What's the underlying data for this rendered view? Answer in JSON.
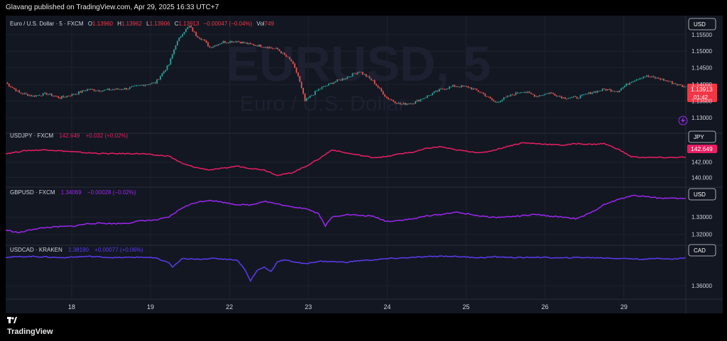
{
  "header": {
    "published_text": "Glavang published on TradingView.com, Apr 29, 2025 16:33 UTC+7"
  },
  "footer": {
    "brand": "TradingView"
  },
  "chart_data": [
    {
      "type": "candlestick",
      "title": "Euro / U.S. Dollar · 5 · FXCM",
      "watermark": "EURUSD, 5",
      "watermark_sub": "Euro / U.S. Dollar",
      "ohlc": {
        "O": "1.13960",
        "H": "1.13962",
        "L": "1.13906",
        "C": "1.13913",
        "change": "−0.00047 (−0.04%)",
        "vol_label": "Vol",
        "vol": "749"
      },
      "currency": "USD",
      "last_price": "1.13913",
      "countdown": "01:42",
      "y_ticks": [
        "1.15500",
        "1.15000",
        "1.14500",
        "1.14000",
        "1.13500",
        "1.13000"
      ],
      "ylim": [
        1.127,
        1.159
      ],
      "x": [
        0,
        2,
        4,
        6,
        8,
        10,
        12,
        14,
        16,
        18,
        20,
        22,
        24,
        25,
        26,
        27,
        28,
        29,
        30,
        32,
        34,
        36,
        38,
        40,
        42,
        43,
        44,
        46,
        48,
        50,
        52,
        54,
        56,
        58,
        60,
        62,
        64,
        66,
        68,
        70,
        72,
        74,
        76,
        78,
        80,
        82,
        84,
        86,
        88,
        90,
        92,
        94,
        96,
        98,
        100
      ],
      "values": [
        1.1405,
        1.1375,
        1.1365,
        1.1372,
        1.136,
        1.137,
        1.1385,
        1.1382,
        1.1385,
        1.1388,
        1.1398,
        1.1405,
        1.146,
        1.152,
        1.1555,
        1.1575,
        1.1548,
        1.1535,
        1.1512,
        1.1528,
        1.153,
        1.152,
        1.1515,
        1.1505,
        1.147,
        1.1425,
        1.135,
        1.1385,
        1.1405,
        1.142,
        1.144,
        1.141,
        1.136,
        1.134,
        1.1345,
        1.1365,
        1.1385,
        1.1395,
        1.1392,
        1.1375,
        1.1345,
        1.1365,
        1.138,
        1.1365,
        1.1375,
        1.136,
        1.136,
        1.1375,
        1.1385,
        1.138,
        1.141,
        1.1425,
        1.1418,
        1.1405,
        1.1391
      ]
    },
    {
      "type": "line",
      "title": "USDJPY · FXCM",
      "last_value": "142.649",
      "change": "+0.032 (+0.02%)",
      "currency": "JPY",
      "y_ticks": [
        "142.000",
        "140.000"
      ],
      "ylim": [
        139.5,
        145.0
      ],
      "color": "#e91e63",
      "x": [
        0,
        3,
        6,
        9,
        12,
        15,
        18,
        20,
        22,
        24,
        26,
        28,
        30,
        32,
        34,
        36,
        38,
        40,
        42,
        44,
        45,
        46,
        48,
        50,
        52,
        54,
        56,
        58,
        60,
        62,
        64,
        66,
        68,
        70,
        72,
        74,
        76,
        78,
        80,
        82,
        84,
        86,
        88,
        90,
        92,
        94,
        96,
        98,
        100
      ],
      "values": [
        143.1,
        143.5,
        143.6,
        143.4,
        143.2,
        143.1,
        143.1,
        143.1,
        142.9,
        142.8,
        141.8,
        141.3,
        141.0,
        141.2,
        141.5,
        141.2,
        141.0,
        140.3,
        140.6,
        141.4,
        141.9,
        142.4,
        143.6,
        143.2,
        142.9,
        142.6,
        142.7,
        143.1,
        143.3,
        143.8,
        144.0,
        143.6,
        143.4,
        143.2,
        143.6,
        144.1,
        144.5,
        144.4,
        144.3,
        144.2,
        144.4,
        144.3,
        144.4,
        143.7,
        142.7,
        142.6,
        142.6,
        142.6,
        142.65
      ]
    },
    {
      "type": "line",
      "title": "GBPUSD · FXCM",
      "last_value": "1.34069",
      "change": "−0.00028 (−0.02%)",
      "currency": "USD",
      "y_ticks": [
        "1.33000",
        "1.32000"
      ],
      "ylim": [
        1.317,
        1.344
      ],
      "color": "#9c27f0",
      "x": [
        0,
        2,
        4,
        6,
        8,
        10,
        12,
        14,
        16,
        18,
        20,
        22,
        24,
        26,
        28,
        30,
        32,
        34,
        36,
        38,
        40,
        42,
        44,
        46,
        47,
        48,
        50,
        52,
        54,
        56,
        58,
        60,
        62,
        64,
        66,
        68,
        70,
        72,
        74,
        76,
        78,
        80,
        82,
        84,
        86,
        88,
        90,
        92,
        94,
        96,
        98,
        100
      ],
      "values": [
        1.3225,
        1.321,
        1.323,
        1.324,
        1.3245,
        1.3248,
        1.3262,
        1.3265,
        1.3262,
        1.3265,
        1.328,
        1.3282,
        1.33,
        1.3355,
        1.3385,
        1.3398,
        1.3385,
        1.3372,
        1.337,
        1.3392,
        1.3375,
        1.3358,
        1.3352,
        1.332,
        1.325,
        1.33,
        1.3315,
        1.331,
        1.3305,
        1.3275,
        1.3282,
        1.329,
        1.3308,
        1.3315,
        1.3328,
        1.3318,
        1.3305,
        1.3298,
        1.3302,
        1.3308,
        1.3315,
        1.3305,
        1.33,
        1.329,
        1.3325,
        1.3372,
        1.34,
        1.3425,
        1.342,
        1.341,
        1.3408,
        1.3407
      ]
    },
    {
      "type": "line",
      "title": "USDCAD · KRAKEN",
      "last_value": "1.38190",
      "change": "+0.00077 (+0.06%)",
      "currency": "CAD",
      "y_ticks": [
        "1.36000"
      ],
      "ylim": [
        1.354,
        1.387
      ],
      "color": "#5b3cf0",
      "x": [
        0,
        4,
        8,
        12,
        16,
        20,
        22,
        24,
        24.5,
        26,
        28,
        30,
        32,
        34,
        35,
        36,
        37,
        38,
        39,
        40,
        41,
        42,
        44,
        46,
        48,
        50,
        52,
        54,
        56,
        58,
        60,
        62,
        64,
        66,
        68,
        70,
        72,
        74,
        76,
        78,
        80,
        82,
        84,
        86,
        88,
        90,
        92,
        94,
        96,
        98,
        100
      ],
      "values": [
        1.3822,
        1.3828,
        1.3818,
        1.3828,
        1.3818,
        1.3822,
        1.3815,
        1.378,
        1.3745,
        1.381,
        1.3805,
        1.3812,
        1.3808,
        1.38,
        1.374,
        1.364,
        1.372,
        1.3745,
        1.371,
        1.379,
        1.38,
        1.379,
        1.377,
        1.379,
        1.3788,
        1.3782,
        1.3795,
        1.38,
        1.381,
        1.3815,
        1.382,
        1.3825,
        1.383,
        1.3828,
        1.3822,
        1.3818,
        1.3825,
        1.382,
        1.3818,
        1.3822,
        1.3818,
        1.3815,
        1.382,
        1.3818,
        1.3816,
        1.3812,
        1.381,
        1.3805,
        1.3815,
        1.3805,
        1.3819
      ]
    }
  ],
  "x_axis": {
    "labels": [
      "18",
      "19",
      "22",
      "23",
      "24",
      "25",
      "26",
      "29"
    ],
    "positions": [
      9.7,
      21.3,
      32.9,
      44.5,
      56.1,
      67.7,
      79.3,
      90.9
    ]
  }
}
